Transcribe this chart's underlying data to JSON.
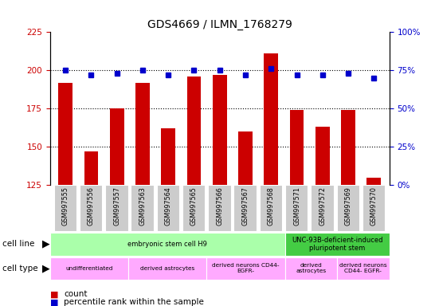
{
  "title": "GDS4669 / ILMN_1768279",
  "samples": [
    "GSM997555",
    "GSM997556",
    "GSM997557",
    "GSM997563",
    "GSM997564",
    "GSM997565",
    "GSM997566",
    "GSM997567",
    "GSM997568",
    "GSM997571",
    "GSM997572",
    "GSM997569",
    "GSM997570"
  ],
  "counts": [
    192,
    147,
    175,
    192,
    162,
    196,
    197,
    160,
    211,
    174,
    163,
    174,
    130
  ],
  "percentiles": [
    75,
    72,
    73,
    75,
    72,
    75,
    75,
    72,
    76,
    72,
    72,
    73,
    70
  ],
  "ylim_left": [
    125,
    225
  ],
  "ylim_right": [
    0,
    100
  ],
  "yticks_left": [
    125,
    150,
    175,
    200,
    225
  ],
  "yticks_right": [
    0,
    25,
    50,
    75,
    100
  ],
  "bar_color": "#cc0000",
  "dot_color": "#0000cc",
  "bg_color": "#ffffff",
  "cell_line_groups": [
    {
      "label": "embryonic stem cell H9",
      "start": 0,
      "end": 9,
      "color": "#aaffaa"
    },
    {
      "label": "UNC-93B-deficient-induced\npluripotent stem",
      "start": 9,
      "end": 13,
      "color": "#44cc44"
    }
  ],
  "cell_type_groups": [
    {
      "label": "undifferentiated",
      "start": 0,
      "end": 3,
      "color": "#ffaaff"
    },
    {
      "label": "derived astrocytes",
      "start": 3,
      "end": 6,
      "color": "#ffaaff"
    },
    {
      "label": "derived neurons CD44-\nEGFR-",
      "start": 6,
      "end": 9,
      "color": "#ffaaff"
    },
    {
      "label": "derived\nastrocytes",
      "start": 9,
      "end": 11,
      "color": "#ffaaff"
    },
    {
      "label": "derived neurons\nCD44- EGFR-",
      "start": 11,
      "end": 13,
      "color": "#ffaaff"
    }
  ],
  "left_axis_color": "#cc0000",
  "right_axis_color": "#0000cc",
  "tick_bg_color": "#cccccc",
  "grid_yticks": [
    150,
    175,
    200
  ]
}
